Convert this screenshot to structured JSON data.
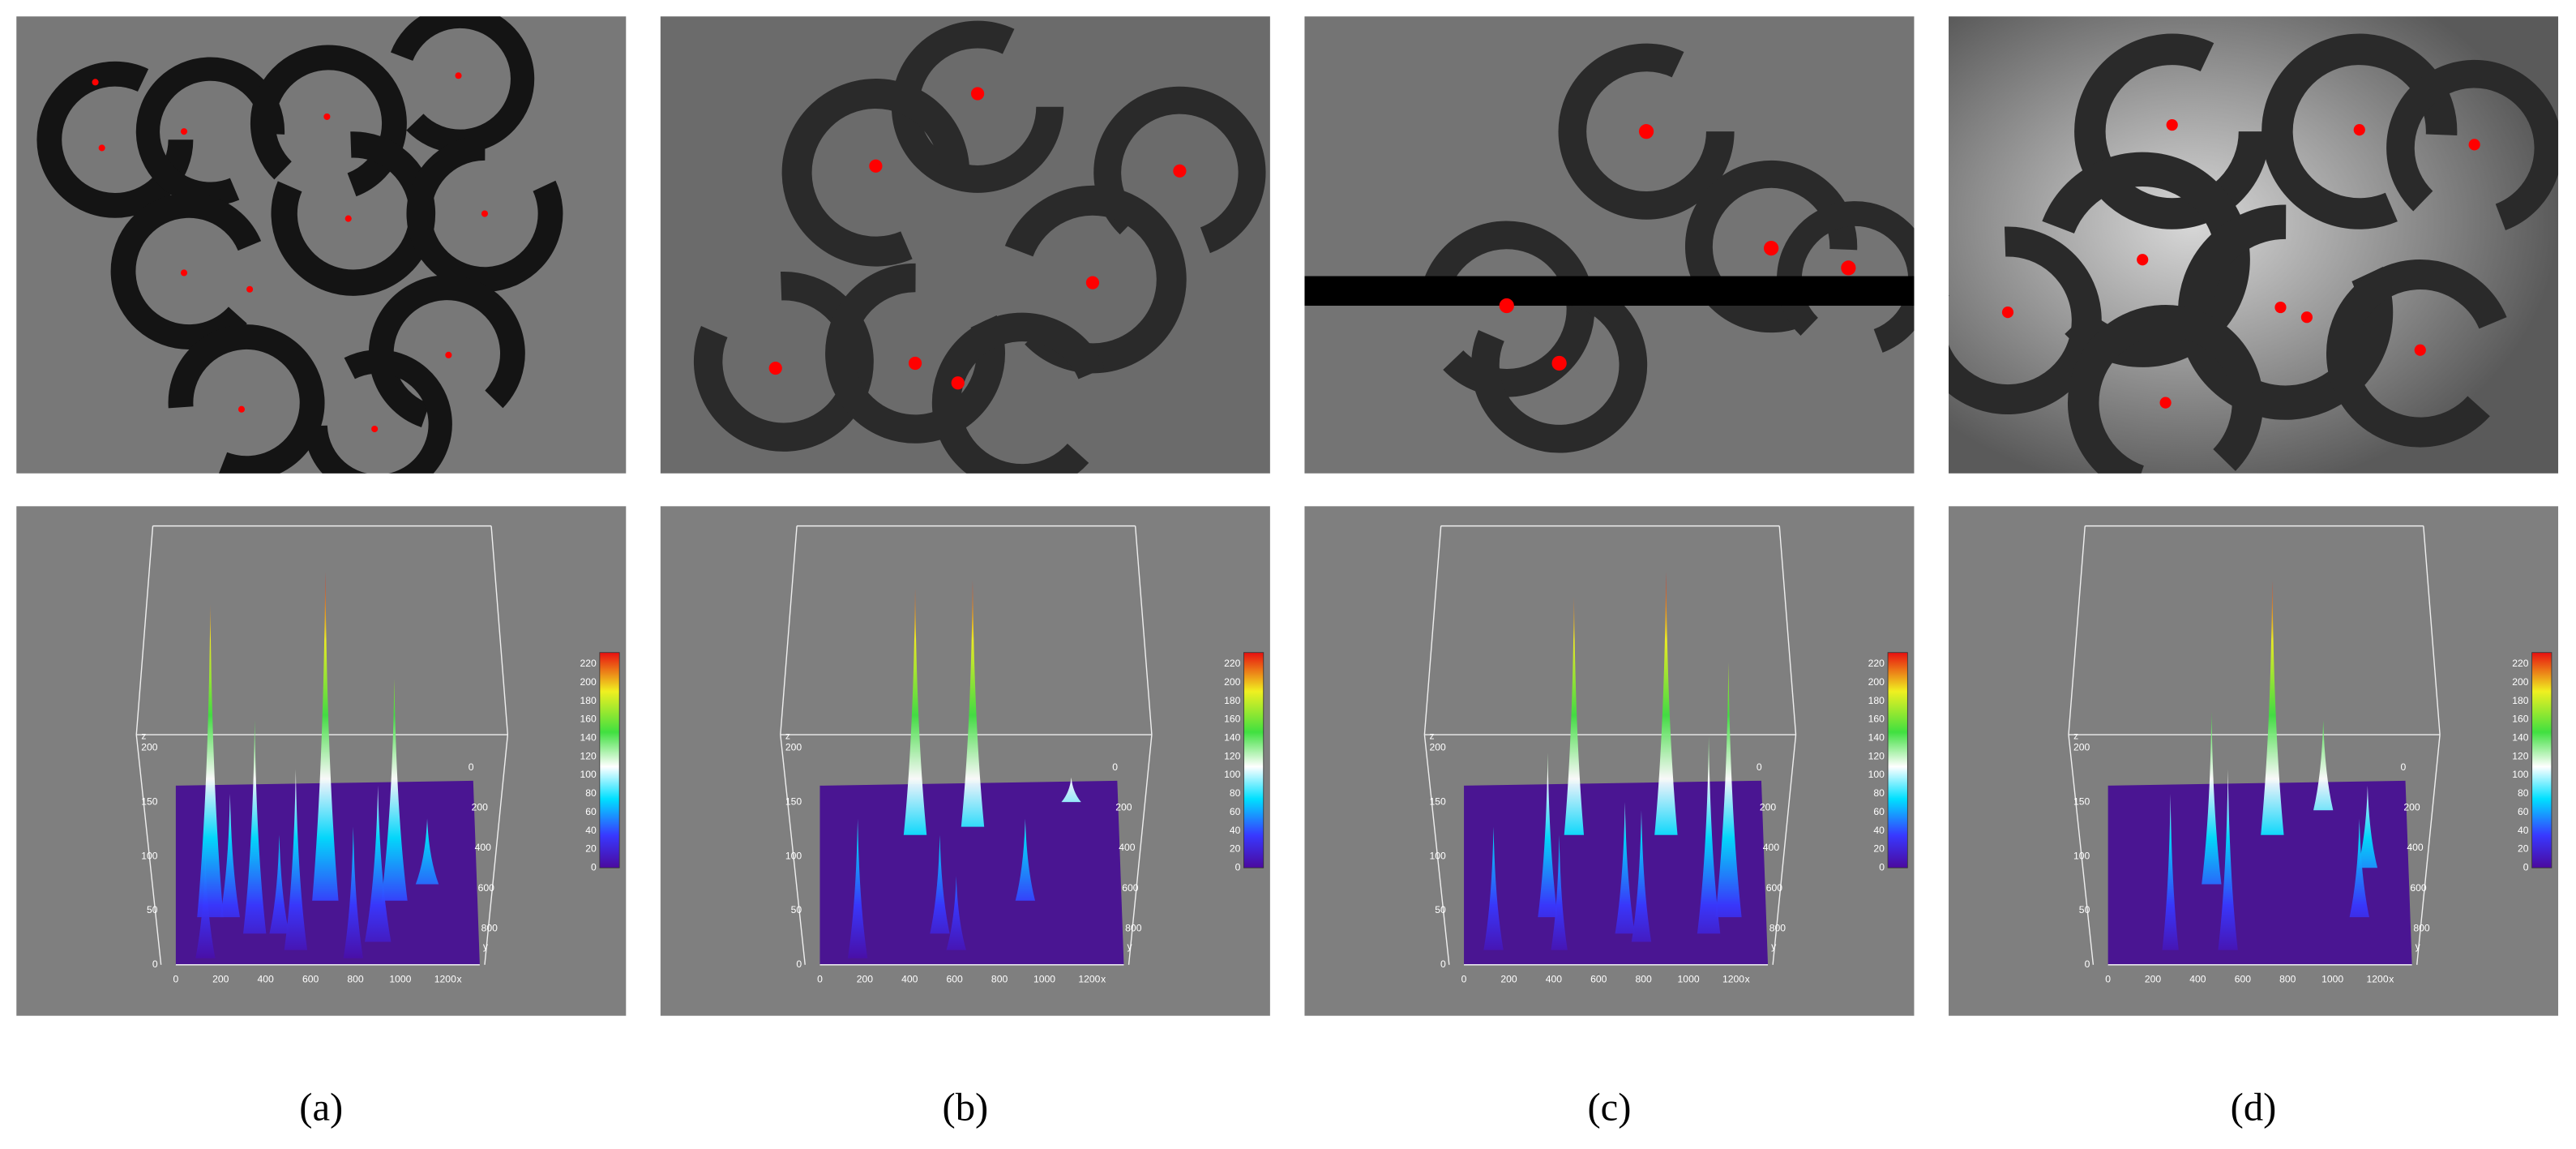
{
  "panels": [
    {
      "label": "(a)",
      "z_axis_label": "z",
      "x_axis_label": "x",
      "y_axis_label": "y",
      "z_ticks": [
        0,
        50,
        100,
        150,
        200
      ],
      "x_ticks": [
        0,
        200,
        400,
        600,
        800,
        1000,
        1200
      ],
      "y_ticks": [
        0,
        200,
        400,
        600,
        800
      ],
      "colorbar_ticks": [
        0,
        20,
        40,
        60,
        80,
        100,
        120,
        140,
        160,
        180,
        200,
        220
      ]
    },
    {
      "label": "(b)",
      "z_axis_label": "z",
      "x_axis_label": "x",
      "y_axis_label": "y",
      "z_ticks": [
        0,
        50,
        100,
        150,
        200
      ],
      "x_ticks": [
        0,
        200,
        400,
        600,
        800,
        1000,
        1200
      ],
      "y_ticks": [
        0,
        200,
        400,
        600,
        800
      ],
      "colorbar_ticks": [
        0,
        20,
        40,
        60,
        80,
        100,
        120,
        140,
        160,
        180,
        200,
        220
      ]
    },
    {
      "label": "(c)",
      "z_axis_label": "z",
      "x_axis_label": "x",
      "y_axis_label": "y",
      "z_ticks": [
        0,
        50,
        100,
        150,
        200
      ],
      "x_ticks": [
        0,
        200,
        400,
        600,
        800,
        1000,
        1200
      ],
      "y_ticks": [
        0,
        200,
        400,
        600,
        800
      ],
      "colorbar_ticks": [
        0,
        20,
        40,
        60,
        80,
        100,
        120,
        140,
        160,
        180,
        200,
        220
      ]
    },
    {
      "label": "(d)",
      "z_axis_label": "z",
      "x_axis_label": "x",
      "y_axis_label": "y",
      "z_ticks": [
        0,
        50,
        100,
        150,
        200
      ],
      "x_ticks": [
        0,
        200,
        400,
        600,
        800,
        1000,
        1200
      ],
      "y_ticks": [
        0,
        200,
        400,
        600,
        800
      ],
      "colorbar_ticks": [
        0,
        20,
        40,
        60,
        80,
        100,
        120,
        140,
        160,
        180,
        200,
        220
      ]
    }
  ]
}
